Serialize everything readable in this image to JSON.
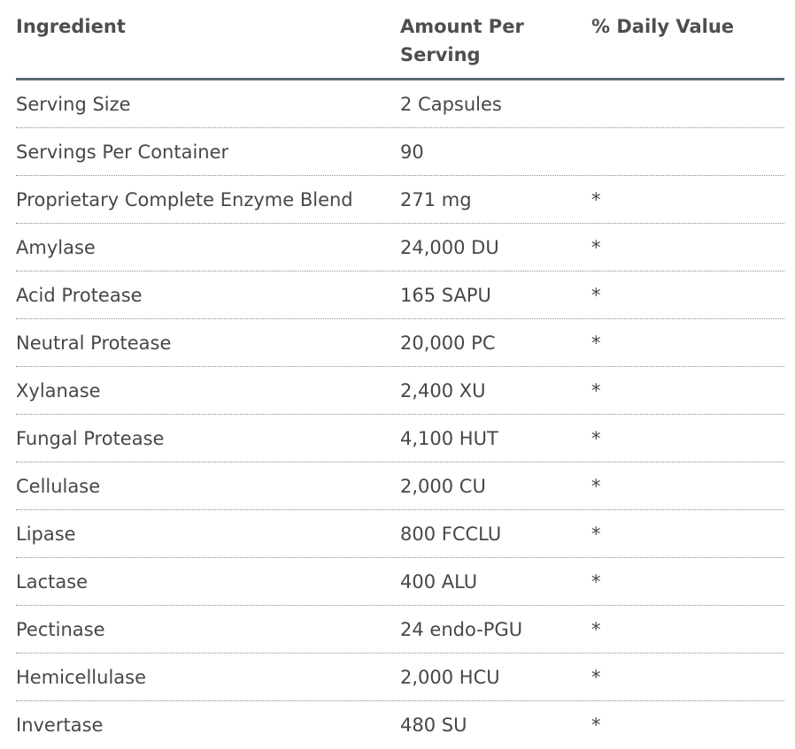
{
  "table": {
    "header": [
      "Ingredient",
      "Amount Per Serving",
      "% Daily Value"
    ],
    "rows": [
      [
        "Serving Size",
        "2 Capsules"
      ],
      [
        "Servings Per Container",
        "90"
      ],
      [
        "Proprietary Complete Enzyme Blend",
        "271 mg",
        "*"
      ],
      [
        "Amylase",
        "24,000 DU",
        "*"
      ],
      [
        "Acid Protease",
        "165 SAPU",
        "*"
      ],
      [
        "Neutral Protease",
        "20,000 PC",
        "*"
      ],
      [
        "Xylanase",
        "2,400 XU",
        "*"
      ],
      [
        "Fungal Protease",
        "4,100 HUT",
        "*"
      ],
      [
        "Cellulase",
        "2,000 CU",
        "*"
      ],
      [
        "Lipase",
        "800 FCCLU",
        "*"
      ],
      [
        "Lactase",
        "400 ALU",
        "*"
      ],
      [
        "Pectinase",
        "24 endo-PGU",
        "*"
      ],
      [
        "Hemicellulase",
        "2,000 HCU",
        "*"
      ],
      [
        "Invertase",
        "480 SU",
        "*"
      ]
    ]
  }
}
